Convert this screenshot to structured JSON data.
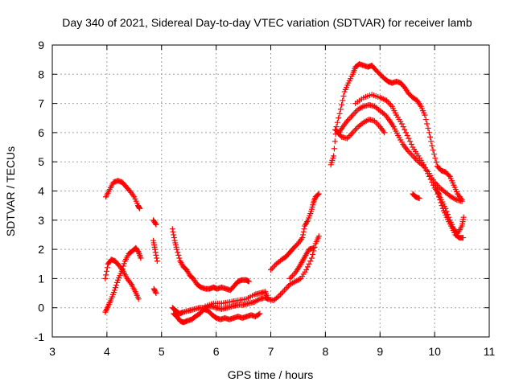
{
  "chart_data": {
    "type": "scatter",
    "title": "Day 340 of 2021, Sidereal Day-to-day VTEC variation (SDTVAR) for receiver lamb",
    "xlabel": "GPS time / hours",
    "ylabel": "SDTVAR / TECUs",
    "xlim": [
      3,
      11
    ],
    "ylim": [
      -1,
      9
    ],
    "x_ticks": [
      "3",
      "4",
      "5",
      "6",
      "7",
      "8",
      "9",
      "10",
      "11"
    ],
    "y_ticks": [
      "-1",
      "0",
      "1",
      "2",
      "3",
      "4",
      "5",
      "6",
      "7",
      "8",
      "9"
    ],
    "grid": true,
    "legend": "none",
    "marker": "+",
    "color": "#ff0000",
    "series": [
      {
        "name": "track-1",
        "points": [
          [
            3.98,
            3.8
          ],
          [
            4.05,
            4.05
          ],
          [
            4.12,
            4.3
          ],
          [
            4.2,
            4.35
          ],
          [
            4.28,
            4.3
          ],
          [
            4.35,
            4.15
          ],
          [
            4.42,
            4.0
          ],
          [
            4.5,
            3.8
          ],
          [
            4.57,
            3.5
          ],
          [
            4.6,
            3.4
          ]
        ]
      },
      {
        "name": "track-2",
        "points": [
          [
            3.97,
            1.0
          ],
          [
            4.02,
            1.5
          ],
          [
            4.08,
            1.65
          ],
          [
            4.15,
            1.6
          ],
          [
            4.22,
            1.45
          ],
          [
            4.3,
            1.25
          ],
          [
            4.37,
            1.0
          ],
          [
            4.45,
            0.8
          ],
          [
            4.52,
            0.55
          ],
          [
            4.58,
            0.3
          ]
        ]
      },
      {
        "name": "track-3",
        "points": [
          [
            3.97,
            -0.15
          ],
          [
            4.02,
            0.05
          ],
          [
            4.08,
            0.3
          ],
          [
            4.14,
            0.6
          ],
          [
            4.2,
            0.95
          ],
          [
            4.27,
            1.25
          ],
          [
            4.33,
            1.6
          ],
          [
            4.4,
            1.85
          ],
          [
            4.47,
            1.95
          ],
          [
            4.53,
            2.05
          ],
          [
            4.58,
            1.9
          ],
          [
            4.62,
            1.7
          ]
        ]
      },
      {
        "name": "track-4",
        "points": [
          [
            4.85,
            3.0
          ],
          [
            4.9,
            2.85
          ]
        ]
      },
      {
        "name": "track-5",
        "points": [
          [
            4.85,
            2.3
          ],
          [
            4.88,
            2.0
          ],
          [
            4.92,
            1.6
          ]
        ]
      },
      {
        "name": "track-6",
        "points": [
          [
            4.86,
            0.65
          ],
          [
            4.9,
            0.5
          ]
        ]
      },
      {
        "name": "track-7",
        "points": [
          [
            5.2,
            2.7
          ],
          [
            5.24,
            2.3
          ],
          [
            5.28,
            2.0
          ],
          [
            5.34,
            1.6
          ],
          [
            5.4,
            1.4
          ],
          [
            5.46,
            1.3
          ],
          [
            5.52,
            1.1
          ],
          [
            5.58,
            1.0
          ],
          [
            5.65,
            0.8
          ],
          [
            5.72,
            0.7
          ],
          [
            5.8,
            0.65
          ],
          [
            5.88,
            0.65
          ],
          [
            5.95,
            0.7
          ],
          [
            6.02,
            0.65
          ],
          [
            6.1,
            0.7
          ],
          [
            6.18,
            0.65
          ],
          [
            6.26,
            0.6
          ],
          [
            6.33,
            0.75
          ],
          [
            6.4,
            0.9
          ],
          [
            6.47,
            0.95
          ],
          [
            6.55,
            0.95
          ],
          [
            6.6,
            0.9
          ]
        ]
      },
      {
        "name": "track-8",
        "points": [
          [
            5.22,
            -0.2
          ],
          [
            5.28,
            -0.3
          ],
          [
            5.34,
            -0.45
          ],
          [
            5.4,
            -0.5
          ],
          [
            5.47,
            -0.45
          ],
          [
            5.55,
            -0.4
          ],
          [
            5.62,
            -0.3
          ],
          [
            5.7,
            -0.2
          ],
          [
            5.78,
            -0.05
          ],
          [
            5.85,
            -0.1
          ],
          [
            5.93,
            -0.25
          ],
          [
            6.0,
            -0.35
          ],
          [
            6.08,
            -0.4
          ],
          [
            6.16,
            -0.35
          ],
          [
            6.24,
            -0.4
          ],
          [
            6.32,
            -0.35
          ],
          [
            6.4,
            -0.3
          ],
          [
            6.48,
            -0.35
          ],
          [
            6.56,
            -0.3
          ],
          [
            6.64,
            -0.25
          ],
          [
            6.72,
            -0.3
          ],
          [
            6.8,
            -0.2
          ]
        ]
      },
      {
        "name": "track-9",
        "points": [
          [
            5.2,
            0.0
          ],
          [
            5.26,
            -0.1
          ],
          [
            5.33,
            -0.2
          ],
          [
            5.4,
            -0.15
          ],
          [
            5.5,
            -0.1
          ],
          [
            5.6,
            -0.05
          ],
          [
            5.7,
            0.0
          ],
          [
            5.8,
            0.0
          ],
          [
            5.9,
            0.05
          ],
          [
            6.0,
            0.0
          ],
          [
            6.1,
            -0.05
          ],
          [
            6.2,
            0.0
          ],
          [
            6.3,
            0.05
          ],
          [
            6.4,
            0.1
          ],
          [
            6.5,
            0.1
          ],
          [
            6.6,
            0.15
          ],
          [
            6.7,
            0.2
          ],
          [
            6.8,
            0.3
          ],
          [
            6.9,
            0.35
          ],
          [
            6.95,
            0.3
          ]
        ]
      },
      {
        "name": "track-10",
        "points": [
          [
            5.8,
            0.05
          ],
          [
            5.95,
            0.15
          ],
          [
            6.1,
            0.15
          ],
          [
            6.25,
            0.2
          ],
          [
            6.4,
            0.25
          ],
          [
            6.55,
            0.3
          ],
          [
            6.7,
            0.45
          ],
          [
            6.8,
            0.5
          ],
          [
            6.9,
            0.55
          ],
          [
            6.95,
            0.3
          ],
          [
            7.05,
            0.25
          ],
          [
            7.15,
            0.4
          ],
          [
            7.25,
            0.6
          ],
          [
            7.35,
            0.8
          ],
          [
            7.45,
            0.9
          ],
          [
            7.55,
            1.0
          ],
          [
            7.65,
            1.3
          ],
          [
            7.75,
            1.7
          ],
          [
            7.82,
            2.2
          ],
          [
            7.88,
            2.45
          ]
        ]
      },
      {
        "name": "track-11",
        "points": [
          [
            7.0,
            1.3
          ],
          [
            7.1,
            1.5
          ],
          [
            7.2,
            1.65
          ],
          [
            7.28,
            1.75
          ],
          [
            7.35,
            1.9
          ],
          [
            7.42,
            2.05
          ],
          [
            7.5,
            2.2
          ],
          [
            7.58,
            2.4
          ],
          [
            7.62,
            2.8
          ],
          [
            7.68,
            3.0
          ],
          [
            7.74,
            3.3
          ],
          [
            7.78,
            3.6
          ],
          [
            7.82,
            3.8
          ],
          [
            7.88,
            3.9
          ]
        ]
      },
      {
        "name": "track-12",
        "points": [
          [
            7.35,
            1.0
          ],
          [
            7.45,
            1.2
          ],
          [
            7.52,
            1.4
          ],
          [
            7.58,
            1.6
          ],
          [
            7.64,
            1.8
          ],
          [
            7.7,
            2.0
          ],
          [
            7.78,
            2.05
          ]
        ]
      },
      {
        "name": "track-13",
        "points": [
          [
            8.1,
            4.9
          ],
          [
            8.15,
            5.2
          ],
          [
            8.2,
            6.2
          ],
          [
            8.28,
            6.8
          ],
          [
            8.35,
            7.4
          ],
          [
            8.42,
            7.7
          ],
          [
            8.5,
            8.0
          ],
          [
            8.55,
            8.25
          ],
          [
            8.62,
            8.35
          ],
          [
            8.7,
            8.3
          ],
          [
            8.78,
            8.25
          ],
          [
            8.85,
            8.3
          ],
          [
            8.92,
            8.15
          ],
          [
            9.0,
            8.0
          ],
          [
            9.08,
            7.85
          ],
          [
            9.15,
            7.75
          ],
          [
            9.22,
            7.7
          ],
          [
            9.3,
            7.75
          ],
          [
            9.38,
            7.7
          ],
          [
            9.45,
            7.55
          ],
          [
            9.52,
            7.35
          ],
          [
            9.6,
            7.2
          ],
          [
            9.68,
            7.1
          ],
          [
            9.75,
            6.9
          ],
          [
            9.82,
            6.6
          ],
          [
            9.9,
            6.0
          ],
          [
            9.97,
            5.4
          ],
          [
            10.05,
            4.85
          ],
          [
            10.12,
            4.7
          ],
          [
            10.2,
            4.65
          ],
          [
            10.28,
            4.5
          ],
          [
            10.35,
            4.2
          ],
          [
            10.42,
            3.9
          ],
          [
            10.5,
            3.7
          ]
        ]
      },
      {
        "name": "track-14",
        "points": [
          [
            8.18,
            6.1
          ],
          [
            8.25,
            6.0
          ],
          [
            8.32,
            6.2
          ],
          [
            8.4,
            6.4
          ],
          [
            8.5,
            6.6
          ],
          [
            8.6,
            6.8
          ],
          [
            8.7,
            6.9
          ],
          [
            8.8,
            6.95
          ],
          [
            8.9,
            6.9
          ],
          [
            9.0,
            6.75
          ],
          [
            9.1,
            6.6
          ],
          [
            9.18,
            6.4
          ],
          [
            9.25,
            6.2
          ],
          [
            9.33,
            5.9
          ],
          [
            9.42,
            5.6
          ],
          [
            9.5,
            5.4
          ],
          [
            9.6,
            5.2
          ],
          [
            9.7,
            5.0
          ],
          [
            9.8,
            4.85
          ],
          [
            9.9,
            4.6
          ],
          [
            10.0,
            4.3
          ],
          [
            10.1,
            4.1
          ],
          [
            10.2,
            3.95
          ],
          [
            10.3,
            3.8
          ],
          [
            10.4,
            3.7
          ],
          [
            10.5,
            3.65
          ]
        ]
      },
      {
        "name": "track-15",
        "points": [
          [
            8.22,
            6.0
          ],
          [
            8.3,
            5.85
          ],
          [
            8.4,
            5.8
          ],
          [
            8.5,
            6.0
          ],
          [
            8.6,
            6.2
          ],
          [
            8.7,
            6.35
          ],
          [
            8.8,
            6.45
          ],
          [
            8.9,
            6.4
          ],
          [
            9.0,
            6.2
          ],
          [
            9.08,
            6.0
          ]
        ]
      },
      {
        "name": "track-16",
        "points": [
          [
            8.55,
            7.0
          ],
          [
            8.7,
            7.2
          ],
          [
            8.85,
            7.3
          ],
          [
            9.0,
            7.2
          ],
          [
            9.12,
            7.1
          ],
          [
            9.22,
            6.9
          ],
          [
            9.3,
            6.6
          ],
          [
            9.4,
            6.3
          ],
          [
            9.5,
            5.9
          ],
          [
            9.6,
            5.5
          ],
          [
            9.7,
            5.2
          ],
          [
            9.8,
            4.9
          ],
          [
            9.9,
            4.5
          ],
          [
            10.0,
            4.1
          ],
          [
            10.08,
            3.9
          ]
        ]
      },
      {
        "name": "track-17",
        "points": [
          [
            10.0,
            4.2
          ],
          [
            10.08,
            3.8
          ],
          [
            10.15,
            3.4
          ],
          [
            10.22,
            3.1
          ],
          [
            10.3,
            2.8
          ],
          [
            10.38,
            2.5
          ],
          [
            10.45,
            2.4
          ],
          [
            10.52,
            2.4
          ]
        ]
      },
      {
        "name": "track-18",
        "points": [
          [
            10.05,
            4.0
          ],
          [
            10.12,
            3.7
          ],
          [
            10.2,
            3.4
          ],
          [
            10.28,
            3.0
          ],
          [
            10.35,
            2.7
          ],
          [
            10.42,
            2.55
          ],
          [
            10.5,
            2.8
          ],
          [
            10.53,
            3.1
          ]
        ]
      },
      {
        "name": "track-19",
        "points": [
          [
            9.6,
            3.9
          ],
          [
            9.65,
            3.8
          ],
          [
            9.72,
            3.75
          ]
        ]
      }
    ]
  }
}
